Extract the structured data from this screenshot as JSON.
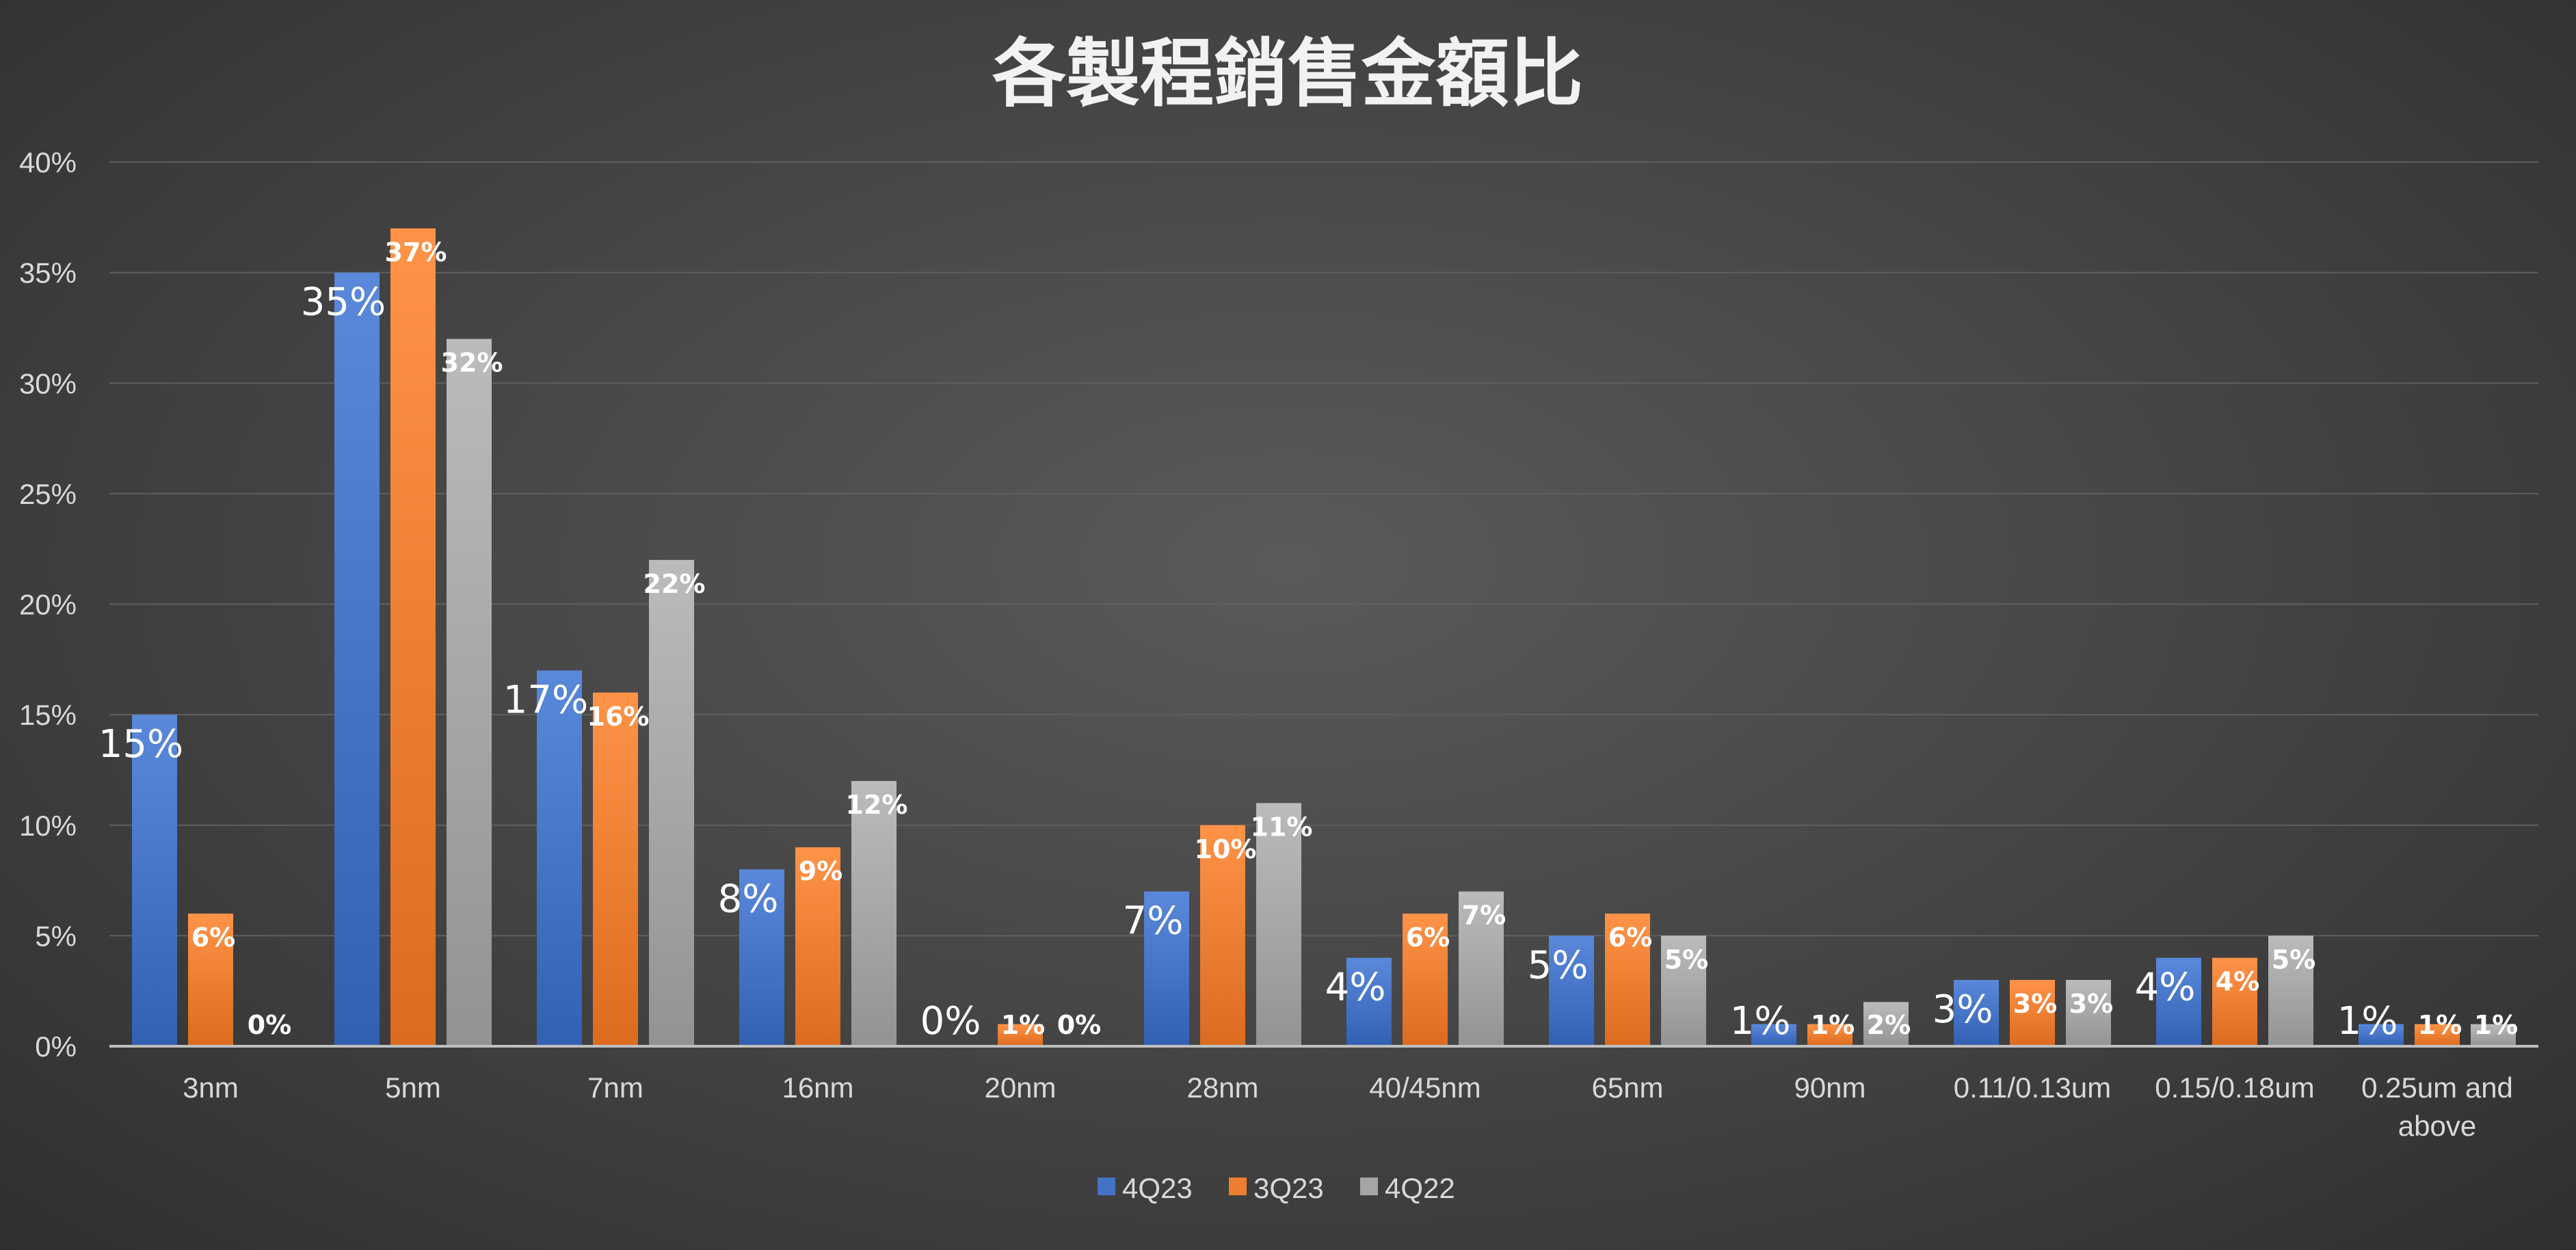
{
  "chart_data": {
    "type": "bar",
    "title": "各製程銷售金額比",
    "categories": [
      "3nm",
      "5nm",
      "7nm",
      "16nm",
      "20nm",
      "28nm",
      "40/45nm",
      "65nm",
      "90nm",
      "0.11/0.13um",
      "0.15/0.18um",
      "0.25um and above"
    ],
    "series": [
      {
        "name": "4Q23",
        "color": "#4472c4",
        "values": [
          15,
          35,
          17,
          8,
          0,
          7,
          4,
          5,
          1,
          3,
          4,
          1
        ],
        "labels": [
          "15%",
          "35%",
          "17%",
          "8%",
          "0%",
          "7%",
          "4%",
          "5%",
          "1%",
          "3%",
          "4%",
          "1%"
        ]
      },
      {
        "name": "3Q23",
        "color": "#ed7d31",
        "values": [
          6,
          37,
          16,
          9,
          1,
          10,
          6,
          6,
          1,
          3,
          4,
          1
        ],
        "labels": [
          "6%",
          "37%",
          "16%",
          "9%",
          "1%",
          "10%",
          "6%",
          "6%",
          "1%",
          "3%",
          "4%",
          "1%"
        ]
      },
      {
        "name": "4Q22",
        "color": "#a5a5a5",
        "values": [
          0,
          32,
          22,
          12,
          0,
          11,
          7,
          5,
          2,
          3,
          5,
          1
        ],
        "labels": [
          "0%",
          "32%",
          "22%",
          "12%",
          "0%",
          "11%",
          "7%",
          "5%",
          "2%",
          "3%",
          "5%",
          "1%"
        ]
      }
    ],
    "y_ticks": [
      "0%",
      "5%",
      "10%",
      "15%",
      "20%",
      "25%",
      "30%",
      "35%",
      "40%"
    ],
    "ylim": [
      0,
      40
    ],
    "xlabel": "",
    "ylabel": "",
    "grid": true,
    "legend": "bottom-center"
  }
}
